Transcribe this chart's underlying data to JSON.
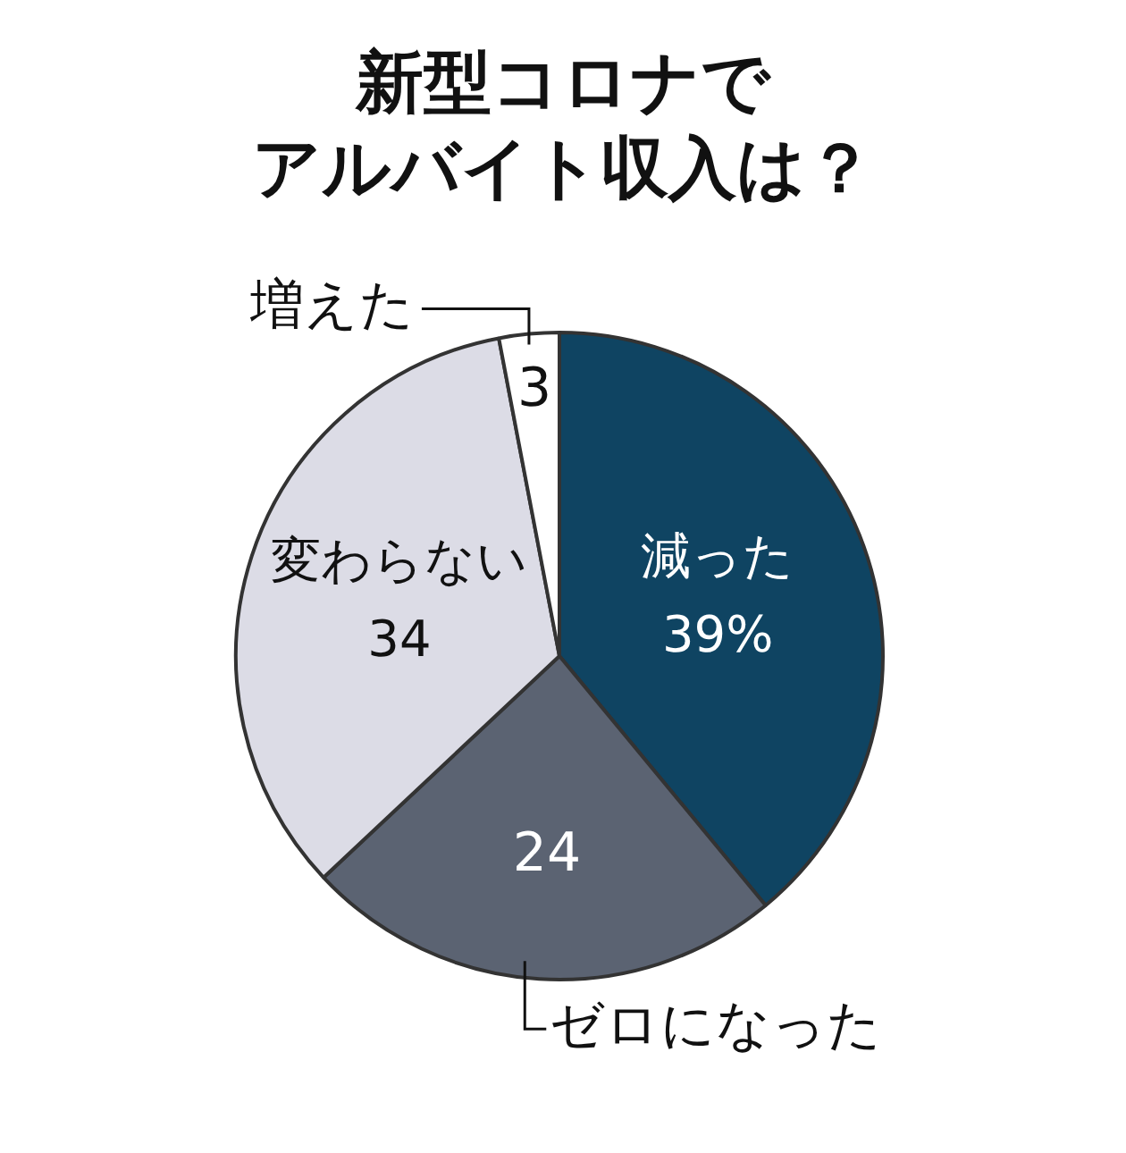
{
  "chart_data": {
    "type": "pie",
    "title": "新型コロナで",
    "subtitle": "アルバイト収入は？",
    "categories": [
      "減った",
      "ゼロになった",
      "変わらない",
      "増えた"
    ],
    "values": [
      39,
      24,
      34,
      3
    ],
    "colors": [
      "#0f4462",
      "#5b6372",
      "#dcdce6",
      "#ffffff"
    ],
    "value_labels": [
      "39%",
      "24",
      "34",
      "3"
    ]
  }
}
